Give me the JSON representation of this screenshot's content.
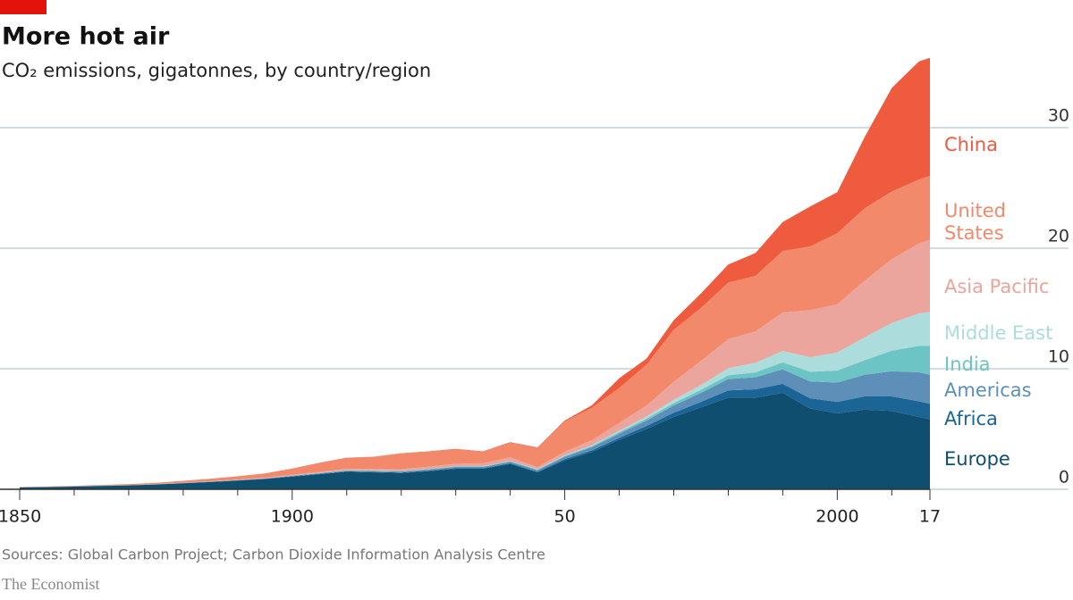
{
  "chart_data": {
    "type": "stacked-area",
    "title": "More hot air",
    "subtitle": "CO₂ emissions, gigatonnes, by country/region",
    "source": "Sources: Global Carbon Project; Carbon Dioxide Information Analysis Centre",
    "brand": "The Economist",
    "x": [
      1850,
      1855,
      1860,
      1865,
      1870,
      1875,
      1880,
      1885,
      1890,
      1895,
      1900,
      1905,
      1910,
      1915,
      1920,
      1925,
      1930,
      1935,
      1940,
      1945,
      1950,
      1955,
      1960,
      1965,
      1970,
      1975,
      1980,
      1985,
      1990,
      1995,
      2000,
      2005,
      2010,
      2015,
      2017
    ],
    "xlim": [
      1850,
      2017
    ],
    "xticks": [
      1850,
      1900,
      {
        "value": 1950,
        "label": "50"
      },
      2000,
      {
        "value": 2017,
        "label": "17"
      }
    ],
    "xminorticks": [
      1860,
      1870,
      1880,
      1890,
      1910,
      1920,
      1930,
      1940,
      1960,
      1970,
      1980,
      1990,
      2010
    ],
    "ylim": [
      0,
      36
    ],
    "yticks": [
      0,
      10,
      20,
      30
    ],
    "grid": true,
    "series": [
      {
        "name": "Europe",
        "color": "#0f4e6e",
        "values": [
          0.15,
          0.18,
          0.22,
          0.28,
          0.32,
          0.4,
          0.5,
          0.6,
          0.72,
          0.85,
          1.05,
          1.25,
          1.45,
          1.4,
          1.35,
          1.5,
          1.7,
          1.7,
          2.1,
          1.4,
          2.4,
          3.1,
          4.1,
          5.0,
          6.0,
          6.8,
          7.6,
          7.6,
          8.0,
          6.7,
          6.3,
          6.6,
          6.5,
          6.0,
          5.8
        ]
      },
      {
        "name": "Africa",
        "color": "#1a6496",
        "values": [
          0.01,
          0.01,
          0.01,
          0.01,
          0.01,
          0.01,
          0.01,
          0.02,
          0.02,
          0.02,
          0.03,
          0.03,
          0.04,
          0.04,
          0.04,
          0.05,
          0.05,
          0.05,
          0.06,
          0.06,
          0.1,
          0.13,
          0.17,
          0.25,
          0.35,
          0.45,
          0.6,
          0.7,
          0.75,
          0.85,
          0.95,
          1.1,
          1.2,
          1.3,
          1.3
        ]
      },
      {
        "name": "Americas",
        "color": "#5d8fb9",
        "values": [
          0.005,
          0.005,
          0.005,
          0.01,
          0.01,
          0.01,
          0.01,
          0.02,
          0.02,
          0.03,
          0.04,
          0.05,
          0.06,
          0.07,
          0.08,
          0.09,
          0.1,
          0.1,
          0.12,
          0.12,
          0.2,
          0.27,
          0.35,
          0.45,
          0.6,
          0.75,
          0.95,
          1.0,
          1.2,
          1.4,
          1.6,
          1.8,
          2.1,
          2.4,
          2.4
        ]
      },
      {
        "name": "India",
        "color": "#6cc4c4",
        "values": [
          0.001,
          0.001,
          0.002,
          0.003,
          0.004,
          0.005,
          0.006,
          0.008,
          0.01,
          0.015,
          0.02,
          0.025,
          0.03,
          0.035,
          0.04,
          0.045,
          0.05,
          0.05,
          0.06,
          0.07,
          0.07,
          0.09,
          0.12,
          0.16,
          0.2,
          0.25,
          0.3,
          0.4,
          0.58,
          0.8,
          1.0,
          1.2,
          1.7,
          2.2,
          2.4
        ]
      },
      {
        "name": "Middle East",
        "color": "#acdcdc",
        "values": [
          0,
          0,
          0,
          0,
          0,
          0,
          0,
          0,
          0,
          0,
          0.002,
          0.003,
          0.005,
          0.008,
          0.01,
          0.012,
          0.015,
          0.018,
          0.02,
          0.03,
          0.05,
          0.08,
          0.12,
          0.18,
          0.28,
          0.4,
          0.6,
          0.8,
          0.95,
          1.2,
          1.5,
          1.9,
          2.3,
          2.7,
          2.8
        ]
      },
      {
        "name": "Asia Pacific",
        "color": "#eba59c",
        "values": [
          0.005,
          0.006,
          0.008,
          0.01,
          0.012,
          0.015,
          0.02,
          0.03,
          0.04,
          0.05,
          0.07,
          0.09,
          0.12,
          0.13,
          0.15,
          0.17,
          0.2,
          0.24,
          0.3,
          0.15,
          0.3,
          0.4,
          0.65,
          0.9,
          1.5,
          2.0,
          2.4,
          2.6,
          3.2,
          3.9,
          4.0,
          4.7,
          5.3,
          5.8,
          6.0
        ]
      },
      {
        "name": "United States",
        "color": "#f2896b",
        "values": [
          0.02,
          0.03,
          0.04,
          0.05,
          0.08,
          0.1,
          0.16,
          0.2,
          0.27,
          0.35,
          0.5,
          0.75,
          0.9,
          1.0,
          1.3,
          1.25,
          1.2,
          0.95,
          1.2,
          1.6,
          2.5,
          2.7,
          2.9,
          3.4,
          4.3,
          4.4,
          4.7,
          4.6,
          5.1,
          5.3,
          5.9,
          6.0,
          5.6,
          5.3,
          5.3
        ]
      },
      {
        "name": "China",
        "color": "#ee5b3e",
        "values": [
          0,
          0,
          0,
          0,
          0,
          0,
          0,
          0,
          0,
          0,
          0.01,
          0.01,
          0.02,
          0.02,
          0.02,
          0.03,
          0.04,
          0.04,
          0.05,
          0.04,
          0.08,
          0.2,
          0.8,
          0.5,
          0.8,
          1.2,
          1.5,
          1.9,
          2.4,
          3.3,
          3.4,
          5.9,
          8.6,
          9.8,
          9.8
        ]
      }
    ]
  }
}
